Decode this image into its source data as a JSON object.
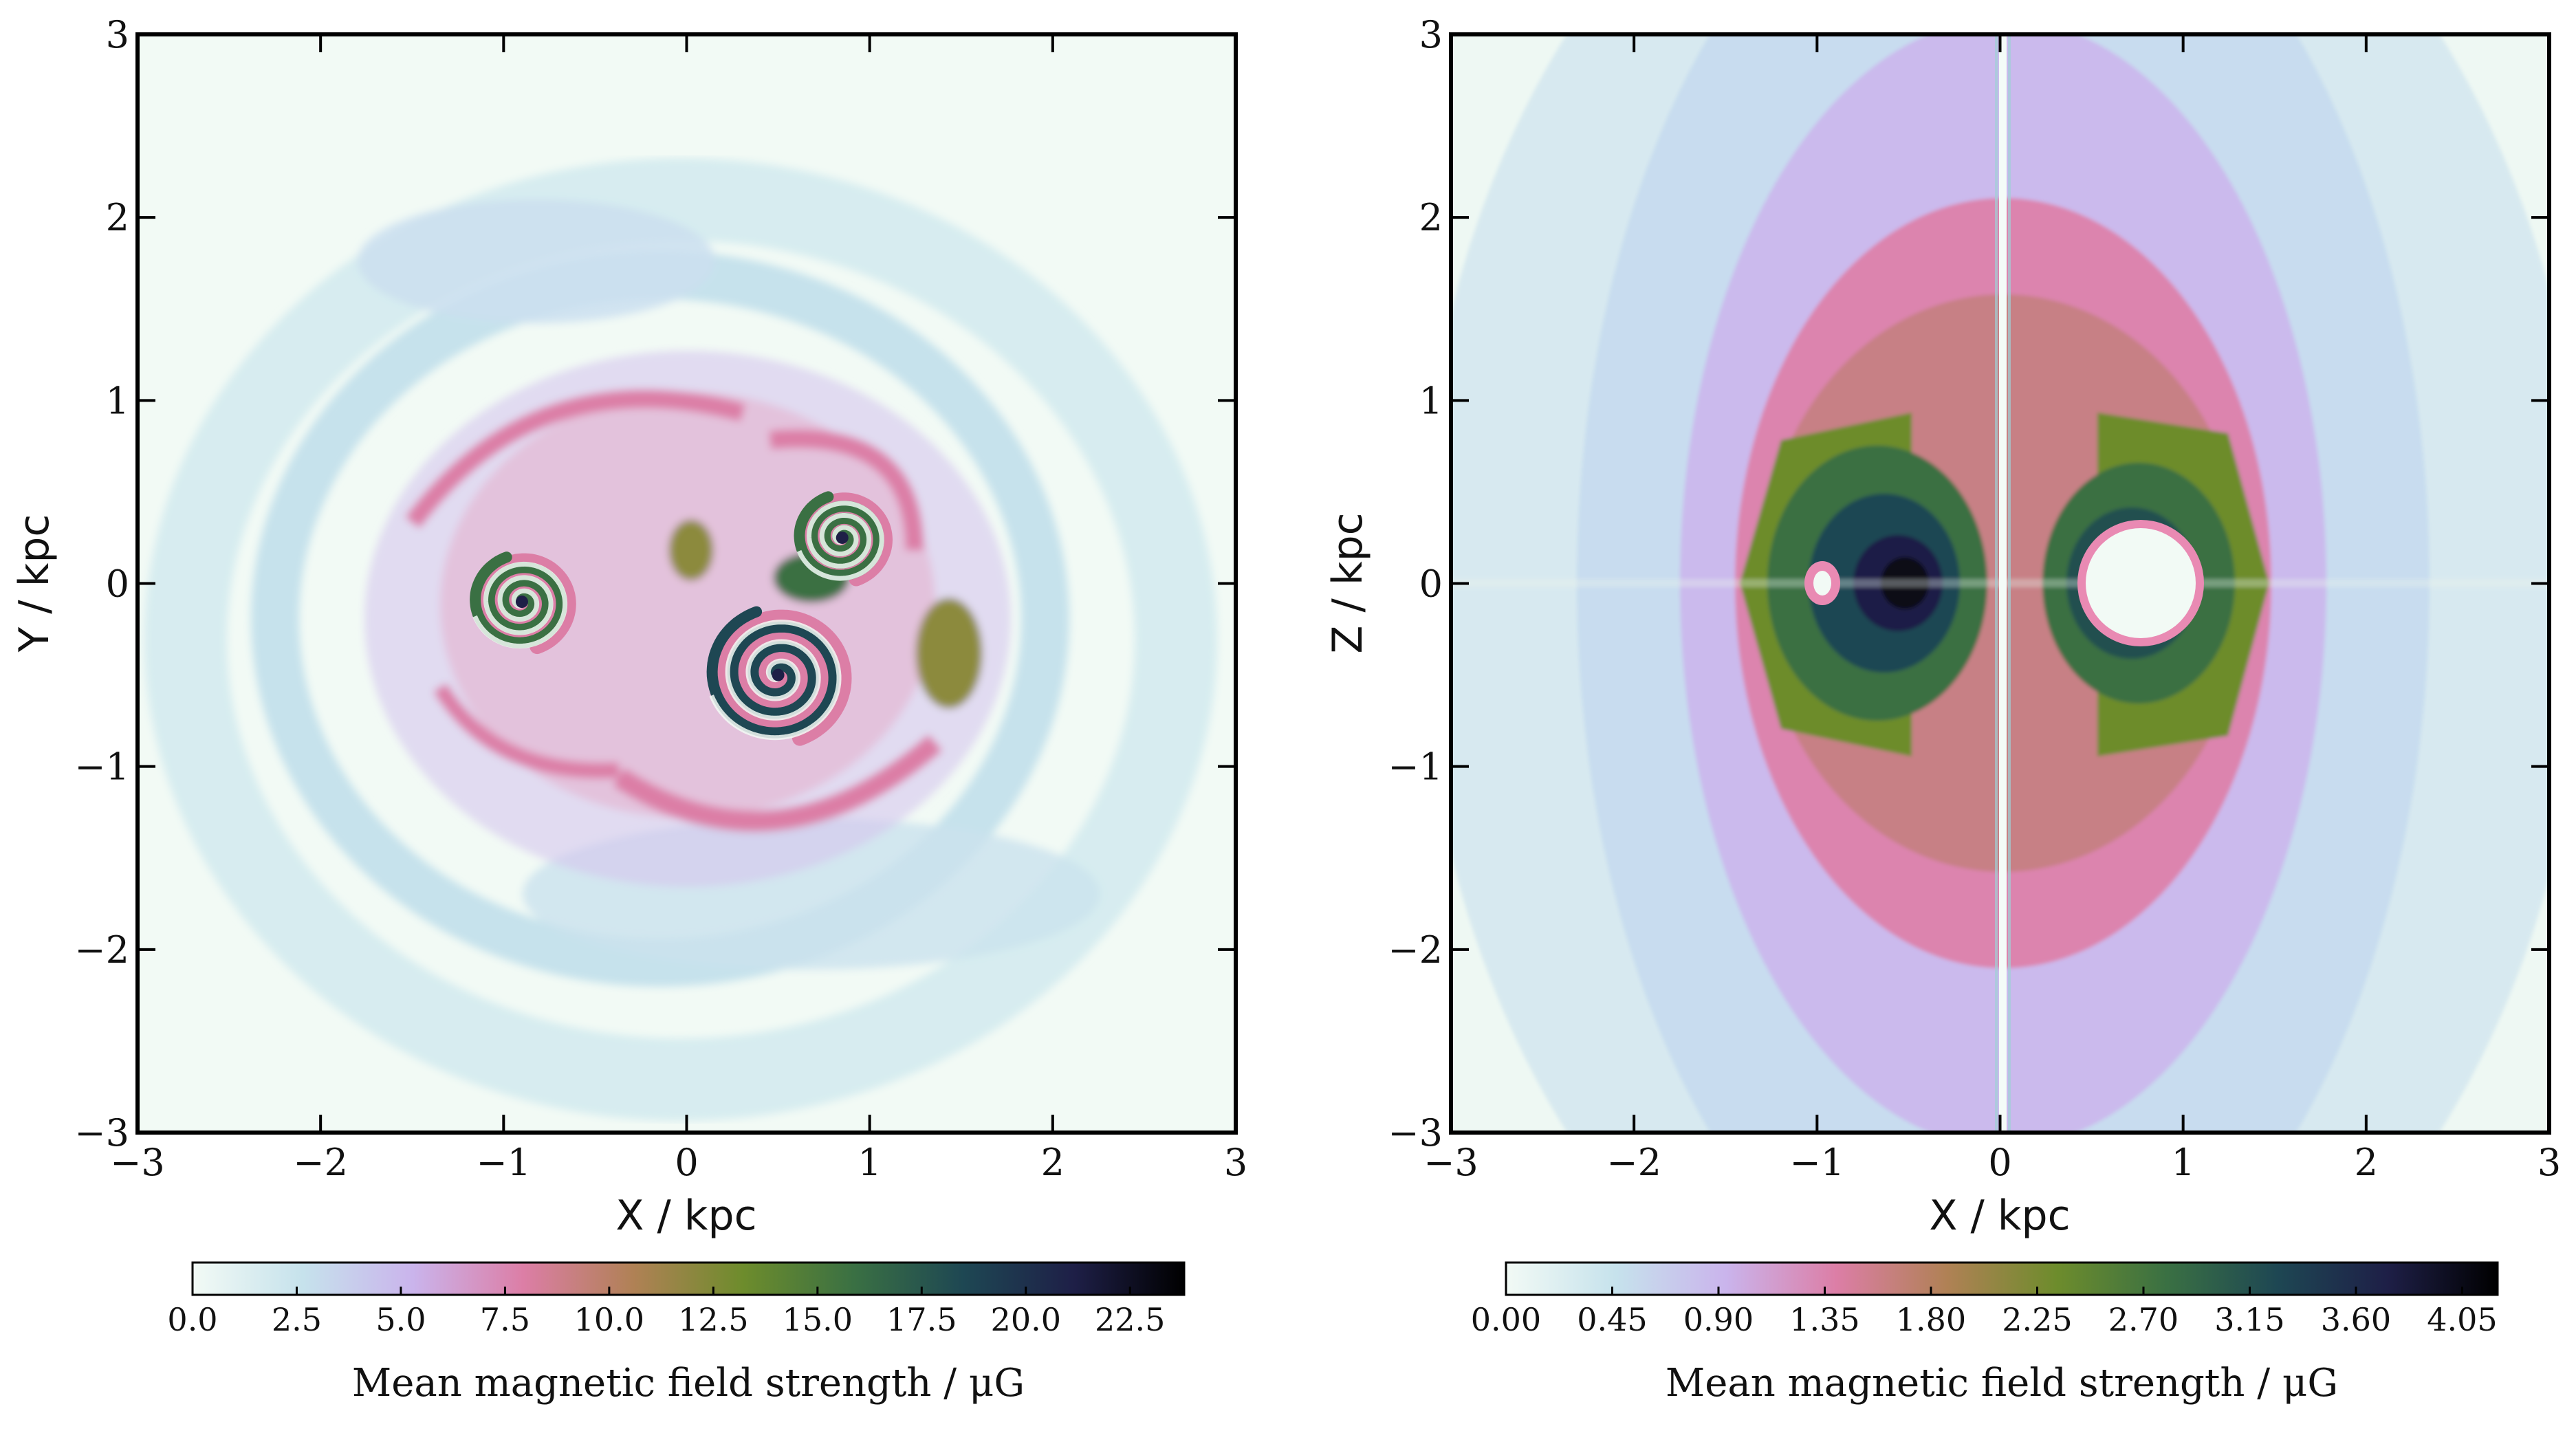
{
  "chart_data": [
    {
      "type": "heatmap",
      "title": "",
      "xlabel": "X / kpc",
      "ylabel": "Y / kpc",
      "xlim": [
        -3,
        3
      ],
      "ylim": [
        -3,
        3
      ],
      "xticks": [
        -3,
        -2,
        -1,
        0,
        1,
        2,
        3
      ],
      "yticks": [
        -3,
        -2,
        -1,
        0,
        1,
        2,
        3
      ],
      "grid": false,
      "colorbar": {
        "label": "Mean magnetic field strength  /  μG",
        "min": 0.0,
        "max": 23.8,
        "ticks": [
          "0.0",
          "2.5",
          "5.0",
          "7.5",
          "10.0",
          "12.5",
          "15.0",
          "17.5",
          "20.0",
          "22.5"
        ],
        "tick_values": [
          0.0,
          2.5,
          5.0,
          7.5,
          10.0,
          12.5,
          15.0,
          17.5,
          20.0,
          22.5
        ],
        "orientation": "horizontal",
        "placement": "bottom"
      },
      "features": [
        {
          "kind": "spiral",
          "x": -0.9,
          "y": -0.1,
          "peak": 14.0
        },
        {
          "kind": "spiral",
          "x": 0.85,
          "y": 0.25,
          "peak": 19.0
        },
        {
          "kind": "spiral",
          "x": 0.5,
          "y": -0.5,
          "peak": 23.0
        }
      ]
    },
    {
      "type": "heatmap",
      "title": "",
      "xlabel": "X / kpc",
      "ylabel": "Z / kpc",
      "xlim": [
        -3,
        3
      ],
      "ylim": [
        -3,
        3
      ],
      "xticks": [
        -3,
        -2,
        -1,
        0,
        1,
        2,
        3
      ],
      "yticks": [
        -3,
        -2,
        -1,
        0,
        1,
        2,
        3
      ],
      "grid": false,
      "colorbar": {
        "label": "Mean magnetic field strength  /  μG",
        "min": 0.0,
        "max": 4.2,
        "ticks": [
          "0.00",
          "0.45",
          "0.90",
          "1.35",
          "1.80",
          "2.25",
          "2.70",
          "3.15",
          "3.60",
          "4.05"
        ],
        "tick_values": [
          0.0,
          0.45,
          0.9,
          1.35,
          1.8,
          2.25,
          2.7,
          3.15,
          3.6,
          4.05
        ],
        "orientation": "horizontal",
        "placement": "bottom"
      },
      "features": [
        {
          "kind": "lobe",
          "x": -0.75,
          "z": 0.0,
          "peak": 4.1
        },
        {
          "kind": "lobe",
          "x": 0.75,
          "z": 0.0,
          "peak": 3.3
        },
        {
          "kind": "hole",
          "x": 0.75,
          "z": 0.0,
          "radius": 0.3
        },
        {
          "kind": "hole",
          "x": -1.0,
          "z": 0.0,
          "radius": 0.1
        },
        {
          "kind": "null-line",
          "x": 0.0
        }
      ]
    }
  ],
  "colormap": [
    "#f2faf5",
    "#c6e2ec",
    "#cab4ec",
    "#dc7ea6",
    "#b08155",
    "#6d8c2c",
    "#3a7043",
    "#1e4753",
    "#1e1f47",
    "#000000"
  ]
}
